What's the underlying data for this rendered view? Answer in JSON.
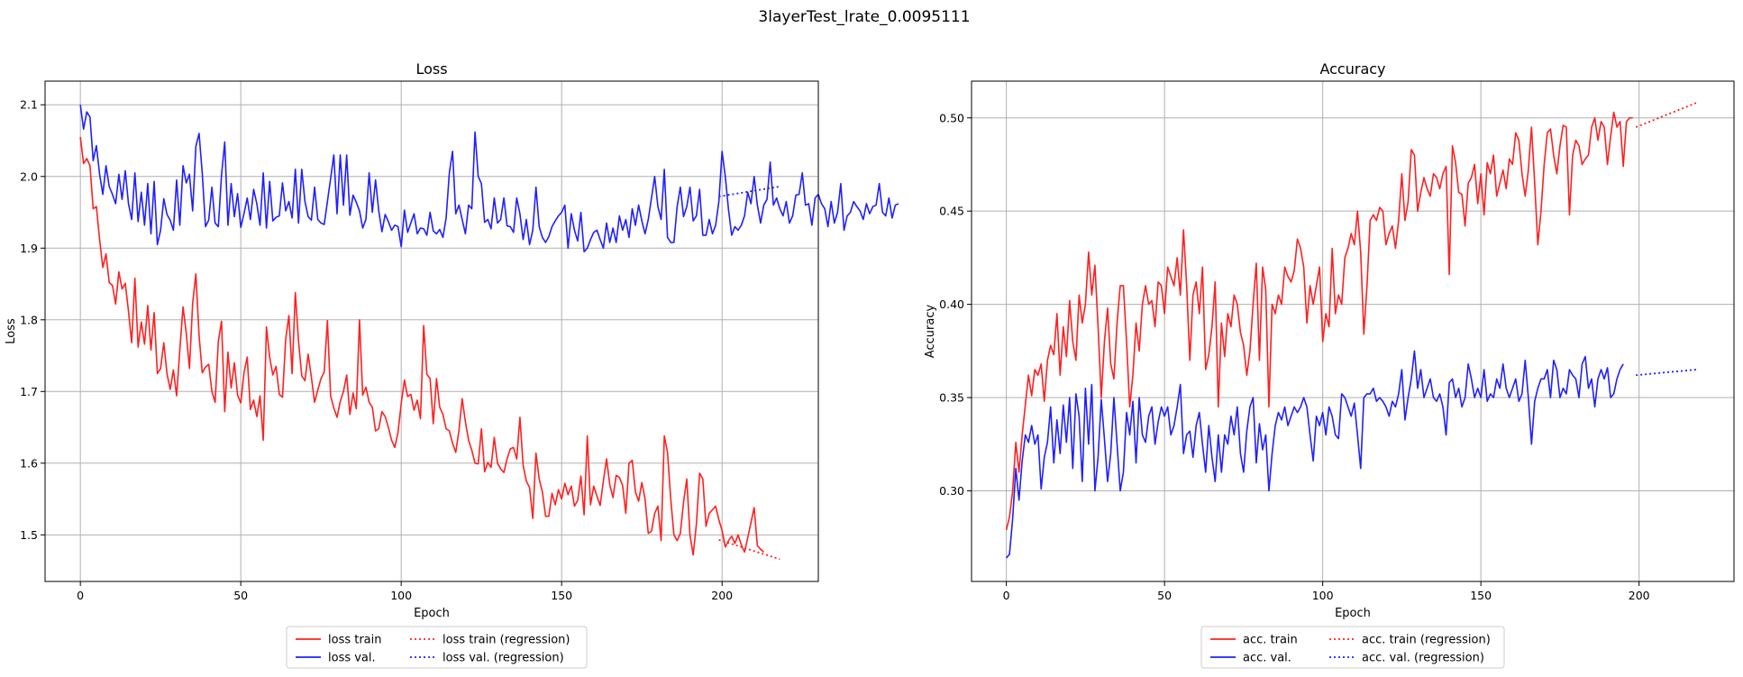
{
  "figure_title": "3layerTest_lrate_0.0095111",
  "chart_data": [
    {
      "type": "line",
      "title": "Loss",
      "xlabel": "Epoch",
      "ylabel": "Loss",
      "xlim": [
        -11,
        230
      ],
      "ylim": [
        1.435,
        2.133
      ],
      "xticks": [
        0,
        50,
        100,
        150,
        200
      ],
      "yticks": [
        1.5,
        1.6,
        1.7,
        1.8,
        1.9,
        2.0,
        2.1
      ],
      "tick_format": "1",
      "grid": true,
      "legend_location": "below-center",
      "series": [
        {
          "name": "loss train",
          "color": "#ff2020",
          "style": "solid",
          "x_start": 0,
          "values": [
            2.055,
            2.018,
            2.025,
            2.015,
            1.955,
            1.958,
            1.912,
            1.873,
            1.892,
            1.852,
            1.848,
            1.822,
            1.867,
            1.843,
            1.851,
            1.812,
            1.768,
            1.858,
            1.762,
            1.797,
            1.766,
            1.82,
            1.758,
            1.81,
            1.725,
            1.732,
            1.768,
            1.725,
            1.703,
            1.73,
            1.694,
            1.758,
            1.818,
            1.782,
            1.732,
            1.823,
            1.864,
            1.778,
            1.726,
            1.734,
            1.738,
            1.7,
            1.685,
            1.77,
            1.798,
            1.672,
            1.755,
            1.705,
            1.74,
            1.695,
            1.684,
            1.726,
            1.748,
            1.675,
            1.688,
            1.665,
            1.694,
            1.632,
            1.79,
            1.748,
            1.723,
            1.735,
            1.696,
            1.692,
            1.773,
            1.806,
            1.725,
            1.838,
            1.77,
            1.722,
            1.715,
            1.752,
            1.72,
            1.685,
            1.702,
            1.718,
            1.727,
            1.799,
            1.694,
            1.677,
            1.664,
            1.686,
            1.7,
            1.723,
            1.668,
            1.698,
            1.676,
            1.8,
            1.695,
            1.706,
            1.685,
            1.678,
            1.645,
            1.648,
            1.672,
            1.665,
            1.65,
            1.632,
            1.622,
            1.643,
            1.683,
            1.716,
            1.693,
            1.696,
            1.674,
            1.688,
            1.662,
            1.792,
            1.724,
            1.718,
            1.655,
            1.718,
            1.678,
            1.668,
            1.648,
            1.645,
            1.628,
            1.615,
            1.646,
            1.69,
            1.658,
            1.632,
            1.618,
            1.6,
            1.599,
            1.648,
            1.588,
            1.601,
            1.594,
            1.636,
            1.6,
            1.592,
            1.587,
            1.606,
            1.62,
            1.622,
            1.606,
            1.664,
            1.597,
            1.575,
            1.566,
            1.523,
            1.614,
            1.578,
            1.56,
            1.526,
            1.526,
            1.558,
            1.542,
            1.563,
            1.55,
            1.572,
            1.556,
            1.568,
            1.54,
            1.548,
            1.582,
            1.528,
            1.638,
            1.542,
            1.568,
            1.554,
            1.541,
            1.575,
            1.606,
            1.57,
            1.552,
            1.583,
            1.58,
            1.569,
            1.53,
            1.6,
            1.604,
            1.56,
            1.547,
            1.573,
            1.55,
            1.502,
            1.505,
            1.53,
            1.54,
            1.492,
            1.638,
            1.615,
            1.55,
            1.5,
            1.492,
            1.502,
            1.546,
            1.578,
            1.5,
            1.472,
            1.515,
            1.586,
            1.578,
            1.512,
            1.53,
            1.535,
            1.54,
            1.521,
            1.506,
            1.483,
            1.492,
            1.498,
            1.488,
            1.5,
            1.486,
            1.476,
            1.496,
            1.517,
            1.538,
            1.485,
            1.48,
            1.476
          ]
        },
        {
          "name": "loss val.",
          "color": "#2020ff",
          "style": "solid",
          "x_start": 0,
          "values": [
            2.1,
            2.066,
            2.09,
            2.083,
            2.022,
            2.043,
            2.003,
            1.975,
            2.015,
            1.986,
            1.975,
            1.962,
            2.003,
            1.968,
            2.008,
            1.962,
            1.94,
            2.005,
            1.937,
            1.978,
            1.932,
            1.99,
            1.92,
            1.993,
            1.905,
            1.925,
            1.969,
            1.947,
            1.939,
            1.925,
            1.995,
            1.932,
            2.015,
            1.991,
            2.003,
            1.952,
            2.042,
            2.06,
            2.004,
            1.93,
            1.939,
            1.985,
            1.935,
            1.93,
            2.002,
            2.048,
            1.932,
            1.99,
            1.944,
            1.976,
            1.929,
            1.948,
            1.97,
            1.94,
            1.982,
            1.962,
            1.932,
            2.005,
            1.928,
            1.993,
            1.938,
            1.943,
            1.945,
            1.991,
            1.952,
            1.965,
            1.942,
            2.01,
            1.935,
            2.01,
            1.965,
            1.944,
            1.939,
            1.985,
            1.94,
            1.935,
            1.933,
            1.965,
            1.997,
            2.03,
            1.948,
            2.03,
            1.96,
            2.03,
            1.946,
            1.974,
            1.964,
            1.952,
            1.928,
            1.94,
            2.005,
            1.95,
            1.995,
            1.952,
            1.923,
            1.947,
            1.937,
            1.925,
            1.932,
            1.93,
            1.902,
            1.953,
            1.922,
            1.935,
            1.948,
            1.92,
            1.928,
            1.927,
            1.918,
            1.95,
            1.924,
            1.92,
            1.926,
            1.915,
            1.942,
            2.005,
            2.035,
            1.948,
            1.96,
            1.94,
            1.92,
            1.96,
            1.955,
            2.062,
            2.0,
            1.99,
            1.936,
            1.94,
            1.927,
            1.97,
            1.935,
            1.94,
            1.97,
            1.931,
            1.93,
            1.922,
            1.97,
            1.948,
            1.912,
            1.94,
            1.905,
            1.925,
            1.985,
            1.93,
            1.915,
            1.908,
            1.916,
            1.93,
            1.938,
            1.945,
            1.95,
            1.96,
            1.9,
            1.948,
            1.925,
            1.91,
            1.95,
            1.895,
            1.9,
            1.912,
            1.922,
            1.925,
            1.912,
            1.9,
            1.935,
            1.908,
            1.928,
            1.908,
            1.945,
            1.925,
            1.94,
            1.915,
            1.955,
            1.932,
            1.96,
            1.938,
            1.92,
            1.94,
            1.97,
            2.0,
            1.958,
            1.94,
            2.01,
            1.915,
            1.908,
            1.908,
            1.958,
            1.985,
            1.944,
            1.958,
            1.985,
            1.938,
            1.945,
            1.982,
            1.918,
            1.918,
            1.94,
            1.92,
            1.932,
            1.965,
            2.035,
            2.0,
            1.954,
            1.918,
            1.93,
            1.925,
            1.932,
            1.945,
            1.978,
            1.962,
            2.0,
            1.96,
            1.935,
            1.96,
            1.968,
            2.02,
            1.96,
            1.97,
            1.955,
            1.945,
            1.965,
            1.935,
            1.945,
            1.974,
            1.975,
            2.005,
            1.96,
            1.962,
            1.932,
            1.97,
            1.975,
            1.962,
            1.955,
            1.93,
            1.965,
            1.935,
            1.95,
            1.99,
            1.925,
            1.945,
            1.95,
            1.965,
            1.958,
            1.952,
            1.94,
            1.962,
            1.948,
            1.958,
            1.96,
            1.99,
            1.95,
            1.945,
            1.97,
            1.942,
            1.96,
            1.962
          ]
        },
        {
          "name": "loss train (regression)",
          "color": "#ff2020",
          "style": "dotted",
          "x": [
            199,
            218
          ],
          "values": [
            1.493,
            1.466
          ]
        },
        {
          "name": "loss val. (regression)",
          "color": "#2020ff",
          "style": "dotted",
          "x": [
            199,
            218
          ],
          "values": [
            1.972,
            1.986
          ]
        }
      ]
    },
    {
      "type": "line",
      "title": "Accuracy",
      "xlabel": "Epoch",
      "ylabel": "Accuracy",
      "xlim": [
        -11,
        230
      ],
      "ylim": [
        0.2514,
        0.5197
      ],
      "xticks": [
        0,
        50,
        100,
        150,
        200
      ],
      "yticks": [
        0.3,
        0.35,
        0.4,
        0.45,
        0.5
      ],
      "tick_format": "2",
      "grid": true,
      "legend_location": "below-center",
      "series": [
        {
          "name": "acc. train",
          "color": "#ff2020",
          "style": "solid",
          "x_start": 0,
          "values": [
            0.279,
            0.286,
            0.3,
            0.326,
            0.31,
            0.33,
            0.346,
            0.362,
            0.351,
            0.365,
            0.362,
            0.368,
            0.348,
            0.37,
            0.378,
            0.373,
            0.395,
            0.362,
            0.388,
            0.372,
            0.402,
            0.38,
            0.37,
            0.405,
            0.39,
            0.4,
            0.428,
            0.405,
            0.421,
            0.388,
            0.35,
            0.38,
            0.398,
            0.368,
            0.36,
            0.39,
            0.41,
            0.41,
            0.38,
            0.345,
            0.362,
            0.39,
            0.375,
            0.4,
            0.41,
            0.4,
            0.402,
            0.388,
            0.412,
            0.41,
            0.395,
            0.42,
            0.415,
            0.41,
            0.425,
            0.405,
            0.44,
            0.41,
            0.37,
            0.405,
            0.412,
            0.395,
            0.42,
            0.365,
            0.373,
            0.388,
            0.412,
            0.345,
            0.39,
            0.372,
            0.395,
            0.388,
            0.405,
            0.4,
            0.385,
            0.378,
            0.362,
            0.375,
            0.4,
            0.422,
            0.37,
            0.42,
            0.408,
            0.345,
            0.4,
            0.395,
            0.405,
            0.4,
            0.42,
            0.415,
            0.412,
            0.418,
            0.435,
            0.43,
            0.42,
            0.39,
            0.41,
            0.4,
            0.41,
            0.42,
            0.38,
            0.395,
            0.388,
            0.43,
            0.395,
            0.405,
            0.4,
            0.425,
            0.43,
            0.438,
            0.432,
            0.45,
            0.428,
            0.384,
            0.41,
            0.445,
            0.448,
            0.445,
            0.452,
            0.45,
            0.432,
            0.438,
            0.442,
            0.43,
            0.445,
            0.47,
            0.445,
            0.455,
            0.483,
            0.48,
            0.45,
            0.46,
            0.468,
            0.462,
            0.458,
            0.47,
            0.468,
            0.462,
            0.47,
            0.474,
            0.416,
            0.485,
            0.476,
            0.46,
            0.459,
            0.442,
            0.465,
            0.468,
            0.475,
            0.454,
            0.47,
            0.448,
            0.476,
            0.47,
            0.48,
            0.458,
            0.465,
            0.472,
            0.462,
            0.478,
            0.475,
            0.492,
            0.488,
            0.47,
            0.458,
            0.472,
            0.495,
            0.465,
            0.432,
            0.45,
            0.475,
            0.492,
            0.494,
            0.48,
            0.47,
            0.485,
            0.496,
            0.495,
            0.448,
            0.48,
            0.488,
            0.485,
            0.475,
            0.478,
            0.48,
            0.495,
            0.5,
            0.488,
            0.498,
            0.495,
            0.475,
            0.49,
            0.503,
            0.495,
            0.498,
            0.474,
            0.498,
            0.5,
            0.5
          ]
        },
        {
          "name": "acc. val.",
          "color": "#2020ff",
          "style": "solid",
          "x_start": 0,
          "values": [
            0.264,
            0.266,
            0.285,
            0.312,
            0.295,
            0.316,
            0.33,
            0.326,
            0.335,
            0.325,
            0.33,
            0.301,
            0.318,
            0.326,
            0.345,
            0.315,
            0.338,
            0.32,
            0.346,
            0.326,
            0.35,
            0.312,
            0.352,
            0.34,
            0.305,
            0.355,
            0.325,
            0.357,
            0.3,
            0.318,
            0.349,
            0.328,
            0.305,
            0.32,
            0.35,
            0.325,
            0.3,
            0.31,
            0.342,
            0.33,
            0.348,
            0.315,
            0.35,
            0.33,
            0.326,
            0.34,
            0.345,
            0.325,
            0.337,
            0.345,
            0.34,
            0.345,
            0.33,
            0.335,
            0.345,
            0.357,
            0.32,
            0.33,
            0.332,
            0.318,
            0.335,
            0.342,
            0.325,
            0.31,
            0.335,
            0.318,
            0.305,
            0.33,
            0.31,
            0.33,
            0.325,
            0.34,
            0.33,
            0.345,
            0.32,
            0.31,
            0.332,
            0.345,
            0.35,
            0.315,
            0.336,
            0.322,
            0.33,
            0.3,
            0.32,
            0.335,
            0.342,
            0.338,
            0.345,
            0.335,
            0.34,
            0.345,
            0.342,
            0.345,
            0.35,
            0.345,
            0.33,
            0.316,
            0.34,
            0.335,
            0.342,
            0.33,
            0.345,
            0.34,
            0.33,
            0.328,
            0.352,
            0.35,
            0.345,
            0.34,
            0.347,
            0.33,
            0.312,
            0.35,
            0.352,
            0.352,
            0.355,
            0.348,
            0.35,
            0.348,
            0.345,
            0.34,
            0.348,
            0.345,
            0.352,
            0.365,
            0.338,
            0.35,
            0.36,
            0.375,
            0.355,
            0.365,
            0.35,
            0.355,
            0.36,
            0.35,
            0.348,
            0.352,
            0.345,
            0.33,
            0.358,
            0.36,
            0.35,
            0.355,
            0.345,
            0.35,
            0.368,
            0.36,
            0.35,
            0.355,
            0.35,
            0.365,
            0.348,
            0.352,
            0.35,
            0.36,
            0.355,
            0.368,
            0.355,
            0.35,
            0.355,
            0.36,
            0.348,
            0.352,
            0.37,
            0.35,
            0.325,
            0.348,
            0.355,
            0.36,
            0.36,
            0.365,
            0.35,
            0.37,
            0.365,
            0.35,
            0.355,
            0.352,
            0.365,
            0.362,
            0.36,
            0.35,
            0.368,
            0.372,
            0.355,
            0.36,
            0.345,
            0.36,
            0.365,
            0.36,
            0.366,
            0.35,
            0.352,
            0.36,
            0.365,
            0.368
          ]
        },
        {
          "name": "acc. train (regression)",
          "color": "#ff2020",
          "style": "dotted",
          "x": [
            199,
            218
          ],
          "values": [
            0.495,
            0.508
          ]
        },
        {
          "name": "acc. val. (regression)",
          "color": "#2020ff",
          "style": "dotted",
          "x": [
            199,
            218
          ],
          "values": [
            0.362,
            0.365
          ]
        }
      ]
    }
  ]
}
